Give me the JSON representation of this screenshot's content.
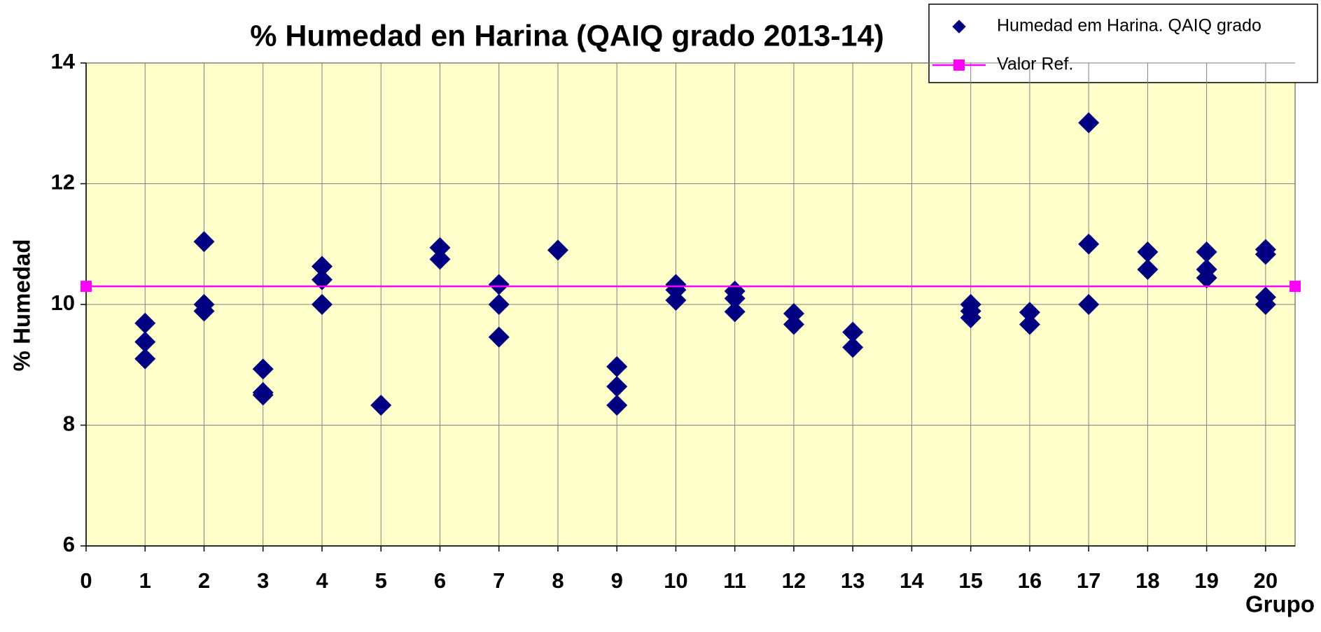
{
  "chart_data": {
    "type": "scatter",
    "title": "% Humedad en Harina (QAIQ grado 2013-14)",
    "x_label": "Grupo",
    "y_label": "% Humedad",
    "xlim": [
      0,
      20.5
    ],
    "ylim": [
      6,
      14
    ],
    "xticks": [
      0,
      1,
      2,
      3,
      4,
      5,
      6,
      7,
      8,
      9,
      10,
      11,
      12,
      13,
      14,
      15,
      16,
      17,
      18,
      19,
      20
    ],
    "yticks": [
      6,
      8,
      10,
      12,
      14
    ],
    "grid": true,
    "legend": "top-right",
    "background": "#ffffcc",
    "series": [
      {
        "name": "Humedad em Harina. QAIQ grado",
        "color": "#000080",
        "marker": "diamond",
        "x": [
          1,
          1,
          1,
          2,
          2,
          2,
          3,
          3,
          3,
          4,
          4,
          4,
          5,
          6,
          6,
          7,
          7,
          7,
          8,
          9,
          9,
          9,
          10,
          10,
          10,
          11,
          11,
          11,
          12,
          12,
          13,
          13,
          15,
          15,
          15,
          16,
          16,
          17,
          17,
          17,
          18,
          18,
          19,
          19,
          19,
          20,
          20,
          20,
          20
        ],
        "values": [
          9.69,
          9.38,
          9.1,
          11.04,
          10.0,
          9.89,
          8.93,
          8.54,
          8.5,
          10.63,
          10.41,
          10.0,
          8.33,
          10.94,
          10.75,
          10.33,
          10.0,
          9.46,
          10.9,
          8.97,
          8.64,
          8.33,
          10.33,
          10.24,
          10.07,
          10.22,
          10.1,
          9.88,
          9.85,
          9.67,
          9.54,
          9.29,
          10.0,
          9.89,
          9.78,
          9.87,
          9.67,
          13.01,
          11.0,
          10.0,
          10.87,
          10.58,
          10.87,
          10.58,
          10.44,
          10.91,
          10.83,
          10.12,
          10.0
        ]
      },
      {
        "name": "Valor Ref.",
        "color": "#ff00ff",
        "marker": "square",
        "line": true,
        "x": [
          0,
          20.5
        ],
        "values": [
          10.3,
          10.3
        ]
      }
    ]
  }
}
